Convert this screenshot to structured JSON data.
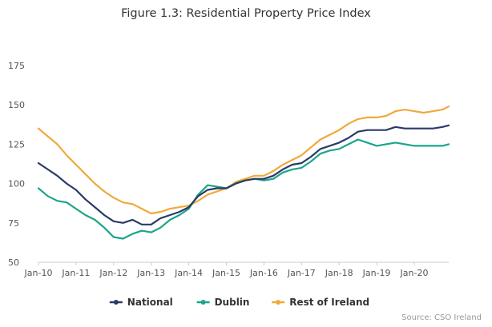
{
  "chart_data": {
    "type": "line",
    "title": "Figure 1.3: Residential Property Price Index",
    "xlabel": "",
    "ylabel": "",
    "x_tick_labels": [
      "Jan-10",
      "Jan-11",
      "Jan-12",
      "Jan-13",
      "Jan-14",
      "Jan-15",
      "Jan-16",
      "Jan-17",
      "Jan-18",
      "Jan-19",
      "Jan-20"
    ],
    "y_ticks": [
      50,
      75,
      100,
      125,
      150,
      175
    ],
    "ylim": [
      50,
      175
    ],
    "x_start": "2010-01",
    "x_end": "2020-12",
    "grid": false,
    "legend_position": "bottom",
    "series": [
      {
        "name": "National",
        "color": "#2b3a67",
        "points": [
          [
            "2010-01",
            113
          ],
          [
            "2010-04",
            109
          ],
          [
            "2010-07",
            105
          ],
          [
            "2010-10",
            100
          ],
          [
            "2011-01",
            96
          ],
          [
            "2011-04",
            90
          ],
          [
            "2011-07",
            85
          ],
          [
            "2011-10",
            80
          ],
          [
            "2012-01",
            76
          ],
          [
            "2012-04",
            75
          ],
          [
            "2012-07",
            77
          ],
          [
            "2012-10",
            74
          ],
          [
            "2013-01",
            74
          ],
          [
            "2013-04",
            78
          ],
          [
            "2013-07",
            80
          ],
          [
            "2013-10",
            82
          ],
          [
            "2014-01",
            85
          ],
          [
            "2014-04",
            92
          ],
          [
            "2014-07",
            96
          ],
          [
            "2014-10",
            97
          ],
          [
            "2015-01",
            97
          ],
          [
            "2015-04",
            100
          ],
          [
            "2015-07",
            102
          ],
          [
            "2015-10",
            103
          ],
          [
            "2016-01",
            103
          ],
          [
            "2016-04",
            105
          ],
          [
            "2016-07",
            109
          ],
          [
            "2016-10",
            112
          ],
          [
            "2017-01",
            113
          ],
          [
            "2017-04",
            117
          ],
          [
            "2017-07",
            122
          ],
          [
            "2017-10",
            124
          ],
          [
            "2018-01",
            126
          ],
          [
            "2018-04",
            129
          ],
          [
            "2018-07",
            133
          ],
          [
            "2018-10",
            134
          ],
          [
            "2019-01",
            134
          ],
          [
            "2019-04",
            134
          ],
          [
            "2019-07",
            136
          ],
          [
            "2019-10",
            135
          ],
          [
            "2020-01",
            135
          ],
          [
            "2020-04",
            135
          ],
          [
            "2020-07",
            135
          ],
          [
            "2020-10",
            136
          ],
          [
            "2020-12",
            137
          ]
        ]
      },
      {
        "name": "Dublin",
        "color": "#1aa58a",
        "points": [
          [
            "2010-01",
            97
          ],
          [
            "2010-04",
            92
          ],
          [
            "2010-07",
            89
          ],
          [
            "2010-10",
            88
          ],
          [
            "2011-01",
            84
          ],
          [
            "2011-04",
            80
          ],
          [
            "2011-07",
            77
          ],
          [
            "2011-10",
            72
          ],
          [
            "2012-01",
            66
          ],
          [
            "2012-04",
            65
          ],
          [
            "2012-07",
            68
          ],
          [
            "2012-10",
            70
          ],
          [
            "2013-01",
            69
          ],
          [
            "2013-04",
            72
          ],
          [
            "2013-07",
            77
          ],
          [
            "2013-10",
            80
          ],
          [
            "2014-01",
            84
          ],
          [
            "2014-04",
            93
          ],
          [
            "2014-07",
            99
          ],
          [
            "2014-10",
            98
          ],
          [
            "2015-01",
            97
          ],
          [
            "2015-04",
            100
          ],
          [
            "2015-07",
            102
          ],
          [
            "2015-10",
            103
          ],
          [
            "2016-01",
            102
          ],
          [
            "2016-04",
            103
          ],
          [
            "2016-07",
            107
          ],
          [
            "2016-10",
            109
          ],
          [
            "2017-01",
            110
          ],
          [
            "2017-04",
            114
          ],
          [
            "2017-07",
            119
          ],
          [
            "2017-10",
            121
          ],
          [
            "2018-01",
            122
          ],
          [
            "2018-04",
            125
          ],
          [
            "2018-07",
            128
          ],
          [
            "2018-10",
            126
          ],
          [
            "2019-01",
            124
          ],
          [
            "2019-04",
            125
          ],
          [
            "2019-07",
            126
          ],
          [
            "2019-10",
            125
          ],
          [
            "2020-01",
            124
          ],
          [
            "2020-04",
            124
          ],
          [
            "2020-07",
            124
          ],
          [
            "2020-10",
            124
          ],
          [
            "2020-12",
            125
          ]
        ]
      },
      {
        "name": "Rest of Ireland",
        "color": "#f0a93b",
        "points": [
          [
            "2010-01",
            135
          ],
          [
            "2010-04",
            130
          ],
          [
            "2010-07",
            125
          ],
          [
            "2010-10",
            118
          ],
          [
            "2011-01",
            112
          ],
          [
            "2011-04",
            106
          ],
          [
            "2011-07",
            100
          ],
          [
            "2011-10",
            95
          ],
          [
            "2012-01",
            91
          ],
          [
            "2012-04",
            88
          ],
          [
            "2012-07",
            87
          ],
          [
            "2012-10",
            84
          ],
          [
            "2013-01",
            81
          ],
          [
            "2013-04",
            82
          ],
          [
            "2013-07",
            84
          ],
          [
            "2013-10",
            85
          ],
          [
            "2014-01",
            86
          ],
          [
            "2014-04",
            89
          ],
          [
            "2014-07",
            93
          ],
          [
            "2014-10",
            95
          ],
          [
            "2015-01",
            97
          ],
          [
            "2015-04",
            101
          ],
          [
            "2015-07",
            103
          ],
          [
            "2015-10",
            105
          ],
          [
            "2016-01",
            105
          ],
          [
            "2016-04",
            108
          ],
          [
            "2016-07",
            112
          ],
          [
            "2016-10",
            115
          ],
          [
            "2017-01",
            118
          ],
          [
            "2017-04",
            123
          ],
          [
            "2017-07",
            128
          ],
          [
            "2017-10",
            131
          ],
          [
            "2018-01",
            134
          ],
          [
            "2018-04",
            138
          ],
          [
            "2018-07",
            141
          ],
          [
            "2018-10",
            142
          ],
          [
            "2019-01",
            142
          ],
          [
            "2019-04",
            143
          ],
          [
            "2019-07",
            146
          ],
          [
            "2019-10",
            147
          ],
          [
            "2020-01",
            146
          ],
          [
            "2020-04",
            145
          ],
          [
            "2020-07",
            146
          ],
          [
            "2020-10",
            147
          ],
          [
            "2020-12",
            149
          ]
        ]
      }
    ]
  },
  "source_text": "Source: CSO Ireland"
}
